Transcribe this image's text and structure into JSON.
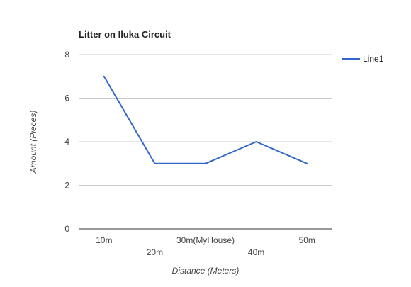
{
  "chart_data": {
    "type": "line",
    "title": "Litter on Iluka Circuit",
    "xlabel": "Distance (Meters)",
    "ylabel": "Amount (Pieces)",
    "categories": [
      "10m",
      "20m",
      "30m(MyHouse)",
      "40m",
      "50m"
    ],
    "series": [
      {
        "name": "Line1",
        "values": [
          7,
          3,
          3,
          4,
          3
        ],
        "color": "#3366cc"
      }
    ],
    "ylim": [
      0,
      8
    ],
    "yticks": [
      0,
      2,
      4,
      6,
      8
    ],
    "grid": true,
    "legend_position": "right",
    "colors": {
      "grid": "#cccccc",
      "baseline": "#333333",
      "line": "#3366cc"
    }
  }
}
